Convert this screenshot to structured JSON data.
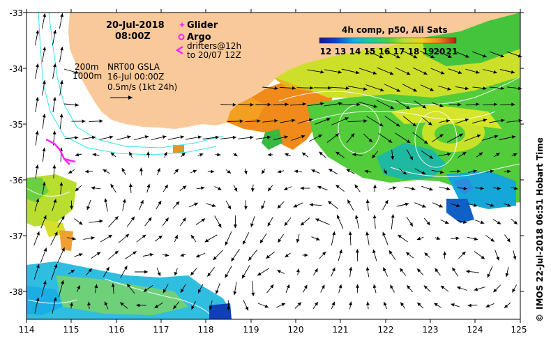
{
  "map": {
    "lon_ticks": [
      "114",
      "115",
      "116",
      "117",
      "118",
      "119",
      "120",
      "121",
      "122",
      "123",
      "124",
      "125"
    ],
    "lat_ticks": [
      "-33",
      "-34",
      "-35",
      "-36",
      "-37",
      "-38"
    ],
    "lon_range": [
      114,
      125
    ],
    "lat_range": [
      -38.5,
      -33
    ]
  },
  "annotations": {
    "date": "20-Jul-2018",
    "time": "08:00Z",
    "glider_label": "Glider",
    "argo_label": "Argo",
    "drifters_line1": "drifters@12h",
    "drifters_line2": "to 20/07 12Z",
    "isobath_200": "200m",
    "isobath_1000": "1000m",
    "nrt_product": "NRT00 GSLA",
    "nrt_date": "16-Jul 00:00Z",
    "scale_arrow": "0.5m/s (1kt 24h)"
  },
  "colorbar": {
    "title": "4h comp, p50, All Sats",
    "ticks": [
      "12",
      "13",
      "14",
      "15",
      "16",
      "17",
      "18",
      "19",
      "20",
      "21"
    ]
  },
  "credit": {
    "copyright_symbol": "©",
    "text": "IMOS 22-Jul-2018 06:51 Hobart Time"
  },
  "colors": {
    "land": "#f9c99a",
    "isobath": "#33e5ee",
    "glider": "#ff22ff",
    "argo": "#ff22ff",
    "drifter": "#ff22ff"
  }
}
